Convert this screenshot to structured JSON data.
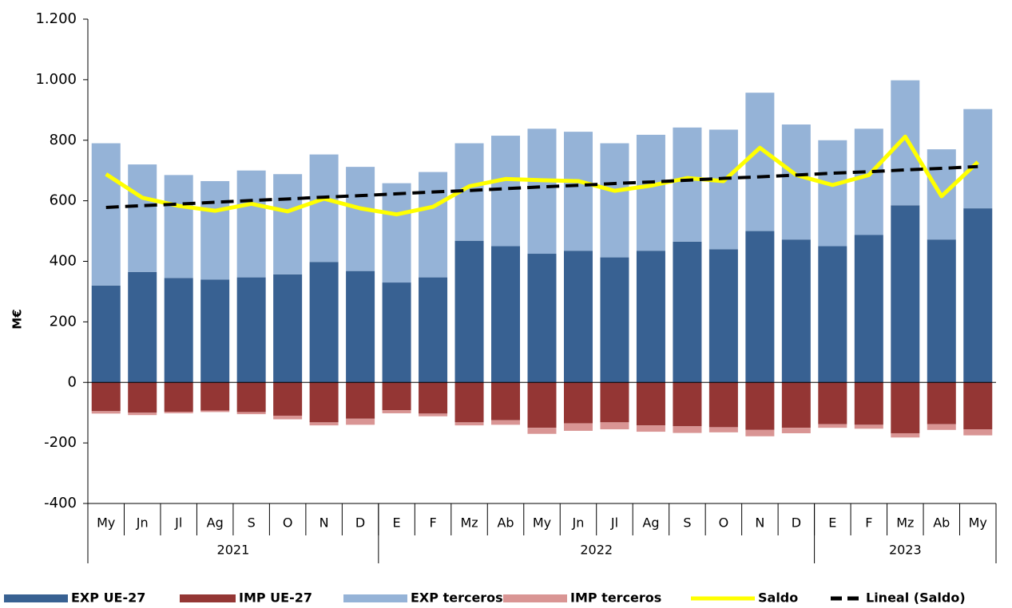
{
  "chart_data": {
    "type": "bar",
    "ylabel": "M€",
    "categories": [
      "My",
      "Jn",
      "Jl",
      "Ag",
      "S",
      "O",
      "N",
      "D",
      "E",
      "F",
      "Mz",
      "Ab",
      "My",
      "Jn",
      "Jl",
      "Ag",
      "S",
      "O",
      "N",
      "D",
      "E",
      "F",
      "Mz",
      "Ab",
      "My"
    ],
    "groups": [
      {
        "name": "2021",
        "span": 8
      },
      {
        "name": "2022",
        "span": 12
      },
      {
        "name": "2023",
        "span": 5
      }
    ],
    "ylim": [
      -400,
      1200
    ],
    "yticks": [
      -400,
      -200,
      0,
      200,
      400,
      600,
      800,
      {
        "value": 1000,
        "label": "1.000"
      },
      {
        "value": 1200,
        "label": "1.200"
      }
    ],
    "series": [
      {
        "name": "EXP UE-27",
        "type": "bar",
        "color": "#386192",
        "values": [
          320,
          365,
          345,
          340,
          347,
          357,
          398,
          368,
          330,
          347,
          468,
          450,
          425,
          435,
          413,
          435,
          465,
          440,
          500,
          472,
          450,
          487,
          585,
          472,
          575
        ]
      },
      {
        "name": "IMP UE-27",
        "type": "bar",
        "color": "#943634",
        "values": [
          -95,
          -100,
          -97,
          -93,
          -98,
          -110,
          -132,
          -120,
          -92,
          -103,
          -132,
          -125,
          -150,
          -135,
          -132,
          -142,
          -145,
          -148,
          -157,
          -150,
          -138,
          -140,
          -168,
          -138,
          -155
        ]
      },
      {
        "name": "EXP terceros",
        "type": "bar",
        "color": "#95b3d7",
        "values": [
          470,
          355,
          340,
          325,
          353,
          331,
          355,
          344,
          328,
          348,
          322,
          365,
          413,
          393,
          377,
          383,
          377,
          395,
          457,
          380,
          350,
          351,
          413,
          298,
          328
        ]
      },
      {
        "name": "IMP terceros",
        "type": "bar",
        "color": "#d99594",
        "values": [
          -8,
          -8,
          -5,
          -5,
          -7,
          -12,
          -10,
          -20,
          -10,
          -9,
          -10,
          -15,
          -20,
          -25,
          -23,
          -21,
          -22,
          -17,
          -21,
          -18,
          -12,
          -13,
          -14,
          -19,
          -20
        ]
      },
      {
        "name": "Saldo",
        "type": "line",
        "color": "#ffff00",
        "values": [
          688,
          610,
          583,
          567,
          590,
          565,
          607,
          575,
          555,
          580,
          648,
          672,
          668,
          665,
          633,
          650,
          675,
          665,
          775,
          685,
          652,
          685,
          812,
          615,
          728
        ]
      },
      {
        "name": "Lineal (Saldo)",
        "type": "line",
        "color": "#000000",
        "dashed": true,
        "values": [
          578,
          584,
          589,
          595,
          601,
          606,
          612,
          617,
          623,
          629,
          634,
          640,
          646,
          651,
          657,
          662,
          668,
          674,
          679,
          685,
          691,
          696,
          702,
          707,
          713
        ]
      }
    ]
  }
}
